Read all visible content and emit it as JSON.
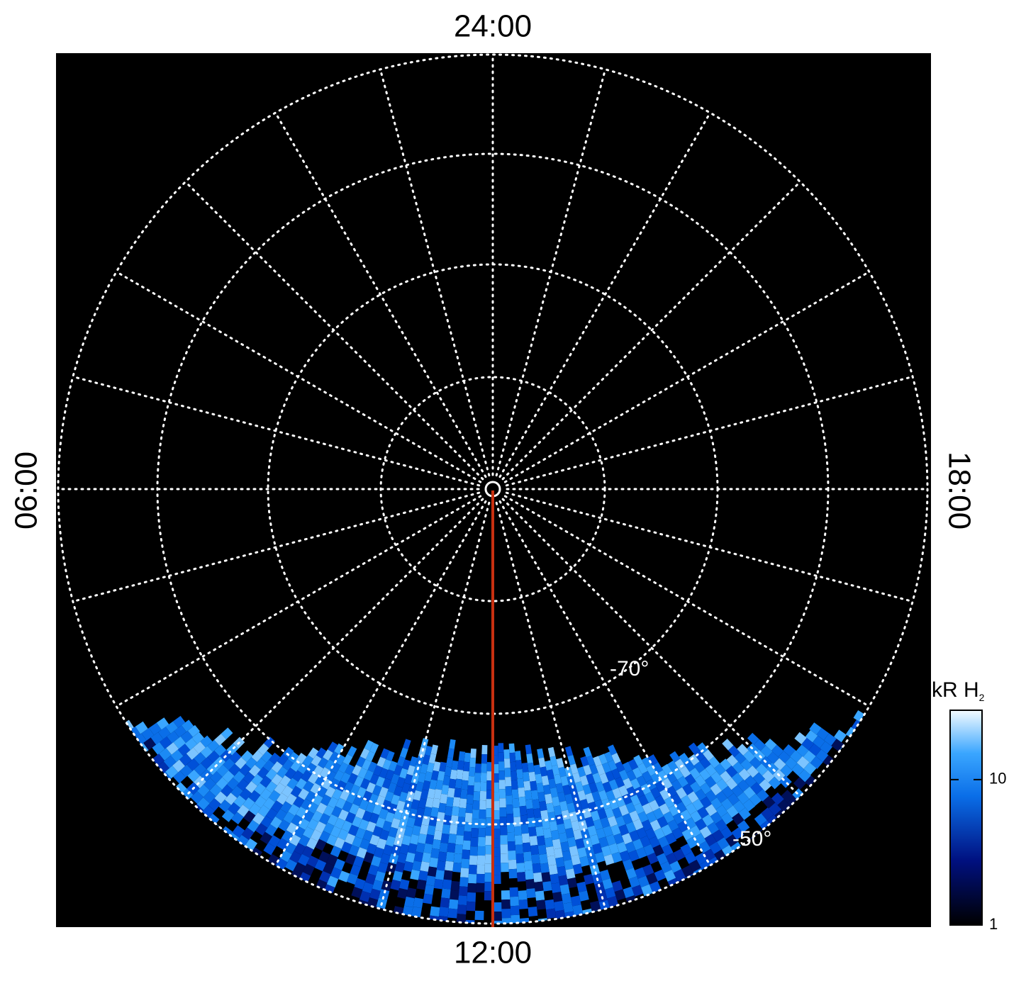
{
  "map": {
    "time_labels": {
      "top": "24:00",
      "bottom": "12:00",
      "left": "06:00",
      "right": "18:00"
    },
    "latitude_labels": [
      "-70°",
      "-50°"
    ],
    "colorbar": {
      "label": "kR H",
      "label_sub": "2",
      "scale": "log",
      "lim": [
        1,
        30
      ],
      "ticks": [
        1,
        10
      ]
    }
  }
}
